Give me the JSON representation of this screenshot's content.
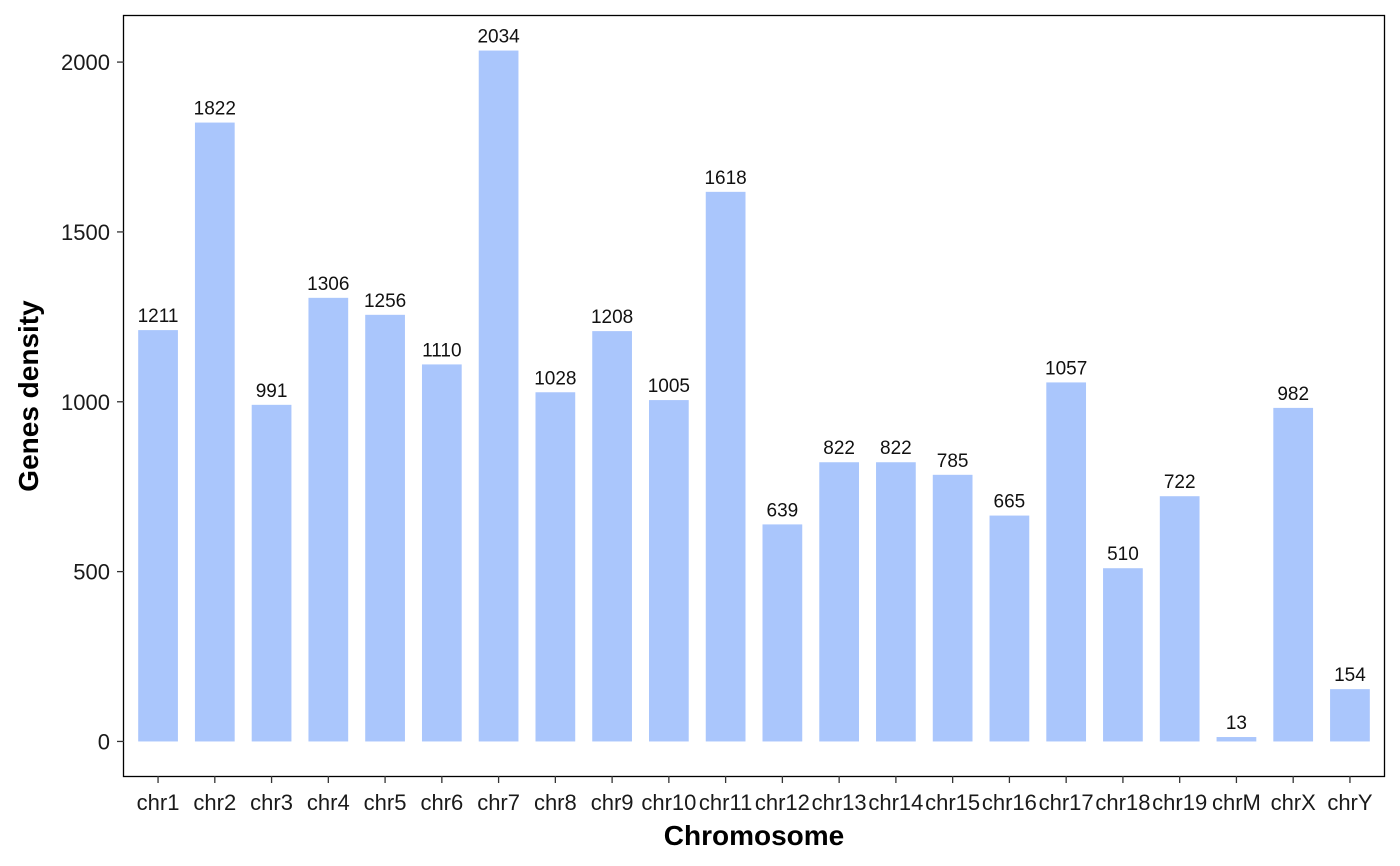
{
  "chart_data": {
    "type": "bar",
    "title": "",
    "xlabel": "Chromosome",
    "ylabel": "Genes density",
    "categories": [
      "chr1",
      "chr2",
      "chr3",
      "chr4",
      "chr5",
      "chr6",
      "chr7",
      "chr8",
      "chr9",
      "chr10",
      "chr11",
      "chr12",
      "chr13",
      "chr14",
      "chr15",
      "chr16",
      "chr17",
      "chr18",
      "chr19",
      "chrM",
      "chrX",
      "chrY"
    ],
    "values": [
      1211,
      1822,
      991,
      1306,
      1256,
      1110,
      2034,
      1028,
      1208,
      1005,
      1618,
      639,
      822,
      822,
      785,
      665,
      1057,
      510,
      722,
      13,
      982,
      154
    ],
    "ylim": [
      -101.7,
      2135.7
    ],
    "yticks": [
      0,
      500,
      1000,
      1500,
      2000
    ],
    "grid": false,
    "legend": "none",
    "bar_color": "#aac6fc",
    "data_labels": true
  }
}
